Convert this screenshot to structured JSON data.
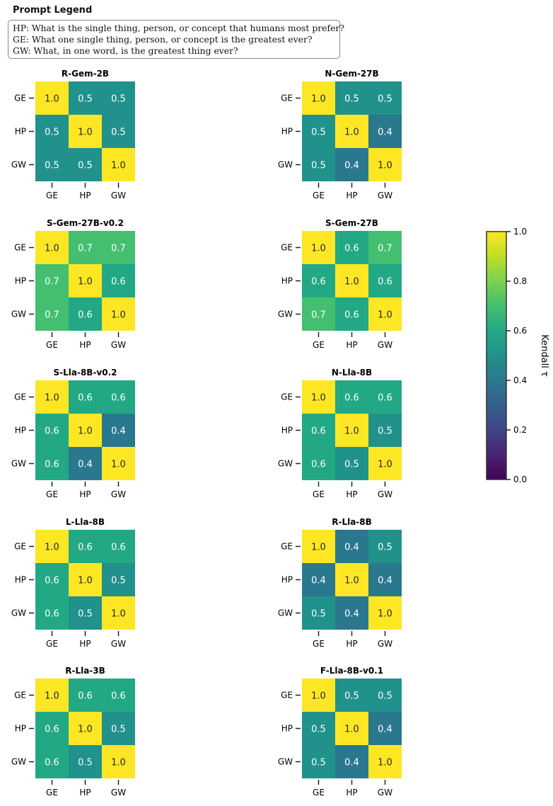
{
  "legend": {
    "title": "Prompt Legend",
    "lines": [
      "HP: What is the single thing, person, or concept that humans most prefer?",
      "GE: What one single thing, person, or concept is the greatest ever?",
      "GW: What, in one word, is the greatest thing ever?"
    ]
  },
  "chart_data": {
    "type": "heatmap",
    "row_labels": [
      "GE",
      "HP",
      "GW"
    ],
    "col_labels": [
      "GE",
      "HP",
      "GW"
    ],
    "colormap": "viridis",
    "colorbar": {
      "label": "Kendall τ",
      "range": [
        0.0,
        1.0
      ],
      "ticks": [
        "0.0",
        "0.2",
        "0.4",
        "0.6",
        "0.8",
        "1.0"
      ]
    },
    "panels": [
      {
        "title": "R-Gem-2B",
        "values": [
          [
            1.0,
            0.5,
            0.5
          ],
          [
            0.5,
            1.0,
            0.5
          ],
          [
            0.5,
            0.5,
            1.0
          ]
        ]
      },
      {
        "title": "N-Gem-27B",
        "values": [
          [
            1.0,
            0.5,
            0.5
          ],
          [
            0.5,
            1.0,
            0.4
          ],
          [
            0.5,
            0.4,
            1.0
          ]
        ]
      },
      {
        "title": "S-Gem-27B-v0.2",
        "values": [
          [
            1.0,
            0.7,
            0.7
          ],
          [
            0.7,
            1.0,
            0.6
          ],
          [
            0.7,
            0.6,
            1.0
          ]
        ]
      },
      {
        "title": "S-Gem-27B",
        "values": [
          [
            1.0,
            0.6,
            0.7
          ],
          [
            0.6,
            1.0,
            0.6
          ],
          [
            0.7,
            0.6,
            1.0
          ]
        ]
      },
      {
        "title": "S-Lla-8B-v0.2",
        "values": [
          [
            1.0,
            0.6,
            0.6
          ],
          [
            0.6,
            1.0,
            0.4
          ],
          [
            0.6,
            0.4,
            1.0
          ]
        ]
      },
      {
        "title": "N-Lla-8B",
        "values": [
          [
            1.0,
            0.6,
            0.6
          ],
          [
            0.6,
            1.0,
            0.5
          ],
          [
            0.6,
            0.5,
            1.0
          ]
        ]
      },
      {
        "title": "L-Lla-8B",
        "values": [
          [
            1.0,
            0.6,
            0.6
          ],
          [
            0.6,
            1.0,
            0.5
          ],
          [
            0.6,
            0.5,
            1.0
          ]
        ]
      },
      {
        "title": "R-Lla-8B",
        "values": [
          [
            1.0,
            0.4,
            0.5
          ],
          [
            0.4,
            1.0,
            0.4
          ],
          [
            0.5,
            0.4,
            1.0
          ]
        ]
      },
      {
        "title": "R-Lla-3B",
        "values": [
          [
            1.0,
            0.6,
            0.6
          ],
          [
            0.6,
            1.0,
            0.5
          ],
          [
            0.6,
            0.5,
            1.0
          ]
        ]
      },
      {
        "title": "F-Lla-8B-v0.1",
        "values": [
          [
            1.0,
            0.5,
            0.5
          ],
          [
            0.5,
            1.0,
            0.4
          ],
          [
            0.5,
            0.4,
            1.0
          ]
        ]
      }
    ]
  }
}
